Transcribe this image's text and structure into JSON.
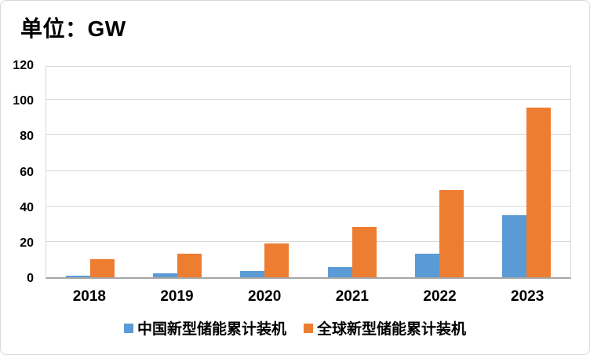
{
  "title": "单位：GW",
  "colors": {
    "series_china": "#5B9BD5",
    "series_global": "#ED7D31",
    "gridline": "#D9D9D9",
    "axis_line": "#A6A6A6",
    "border": "#D9D9D9",
    "text": "#000000",
    "background": "#FFFFFF"
  },
  "chart_data": {
    "type": "bar",
    "title": "单位：GW",
    "categories": [
      "2018",
      "2019",
      "2020",
      "2021",
      "2022",
      "2023"
    ],
    "series": [
      {
        "name": "中国新型储能累计装机",
        "color": "#5B9BD5",
        "values": [
          1,
          2,
          3.4,
          5.8,
          13.5,
          35
        ]
      },
      {
        "name": "全球新型储能累计装机",
        "color": "#ED7D31",
        "values": [
          10,
          13.5,
          19,
          28.5,
          49,
          95.5
        ]
      }
    ],
    "xlabel": "",
    "ylabel": "",
    "ylim": [
      0,
      120
    ],
    "yticks": [
      0,
      20,
      40,
      60,
      80,
      100,
      120
    ],
    "grid": true,
    "legend_position": "bottom"
  }
}
